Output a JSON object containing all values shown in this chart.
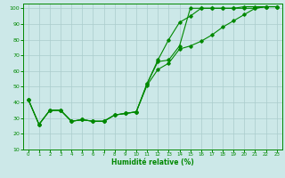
{
  "xlabel": "Humidité relative (%)",
  "background_color": "#cce8e8",
  "grid_color": "#aacccc",
  "line_color": "#008800",
  "hours": [
    0,
    1,
    2,
    3,
    4,
    5,
    6,
    7,
    8,
    9,
    10,
    11,
    12,
    13,
    14,
    15,
    16,
    17,
    18,
    19,
    20,
    21,
    22,
    23
  ],
  "series1": [
    42,
    26,
    35,
    35,
    28,
    29,
    28,
    28,
    32,
    33,
    34,
    52,
    67,
    80,
    91,
    95,
    100,
    100,
    100,
    100,
    101,
    101,
    101,
    101
  ],
  "series2": [
    42,
    26,
    35,
    35,
    28,
    29,
    28,
    28,
    32,
    33,
    34,
    52,
    66,
    67,
    76,
    100,
    100,
    100,
    100,
    100,
    100,
    100,
    101,
    101
  ],
  "series3": [
    42,
    26,
    35,
    35,
    28,
    29,
    28,
    28,
    32,
    33,
    34,
    51,
    61,
    65,
    74,
    76,
    79,
    83,
    88,
    92,
    96,
    100,
    101,
    101
  ],
  "ylim": [
    10,
    103
  ],
  "xlim": [
    -0.5,
    23.5
  ],
  "yticks": [
    10,
    20,
    30,
    40,
    50,
    60,
    70,
    80,
    90,
    100
  ],
  "xticks": [
    0,
    1,
    2,
    3,
    4,
    5,
    6,
    7,
    8,
    9,
    10,
    11,
    12,
    13,
    14,
    15,
    16,
    17,
    18,
    19,
    20,
    21,
    22,
    23
  ]
}
